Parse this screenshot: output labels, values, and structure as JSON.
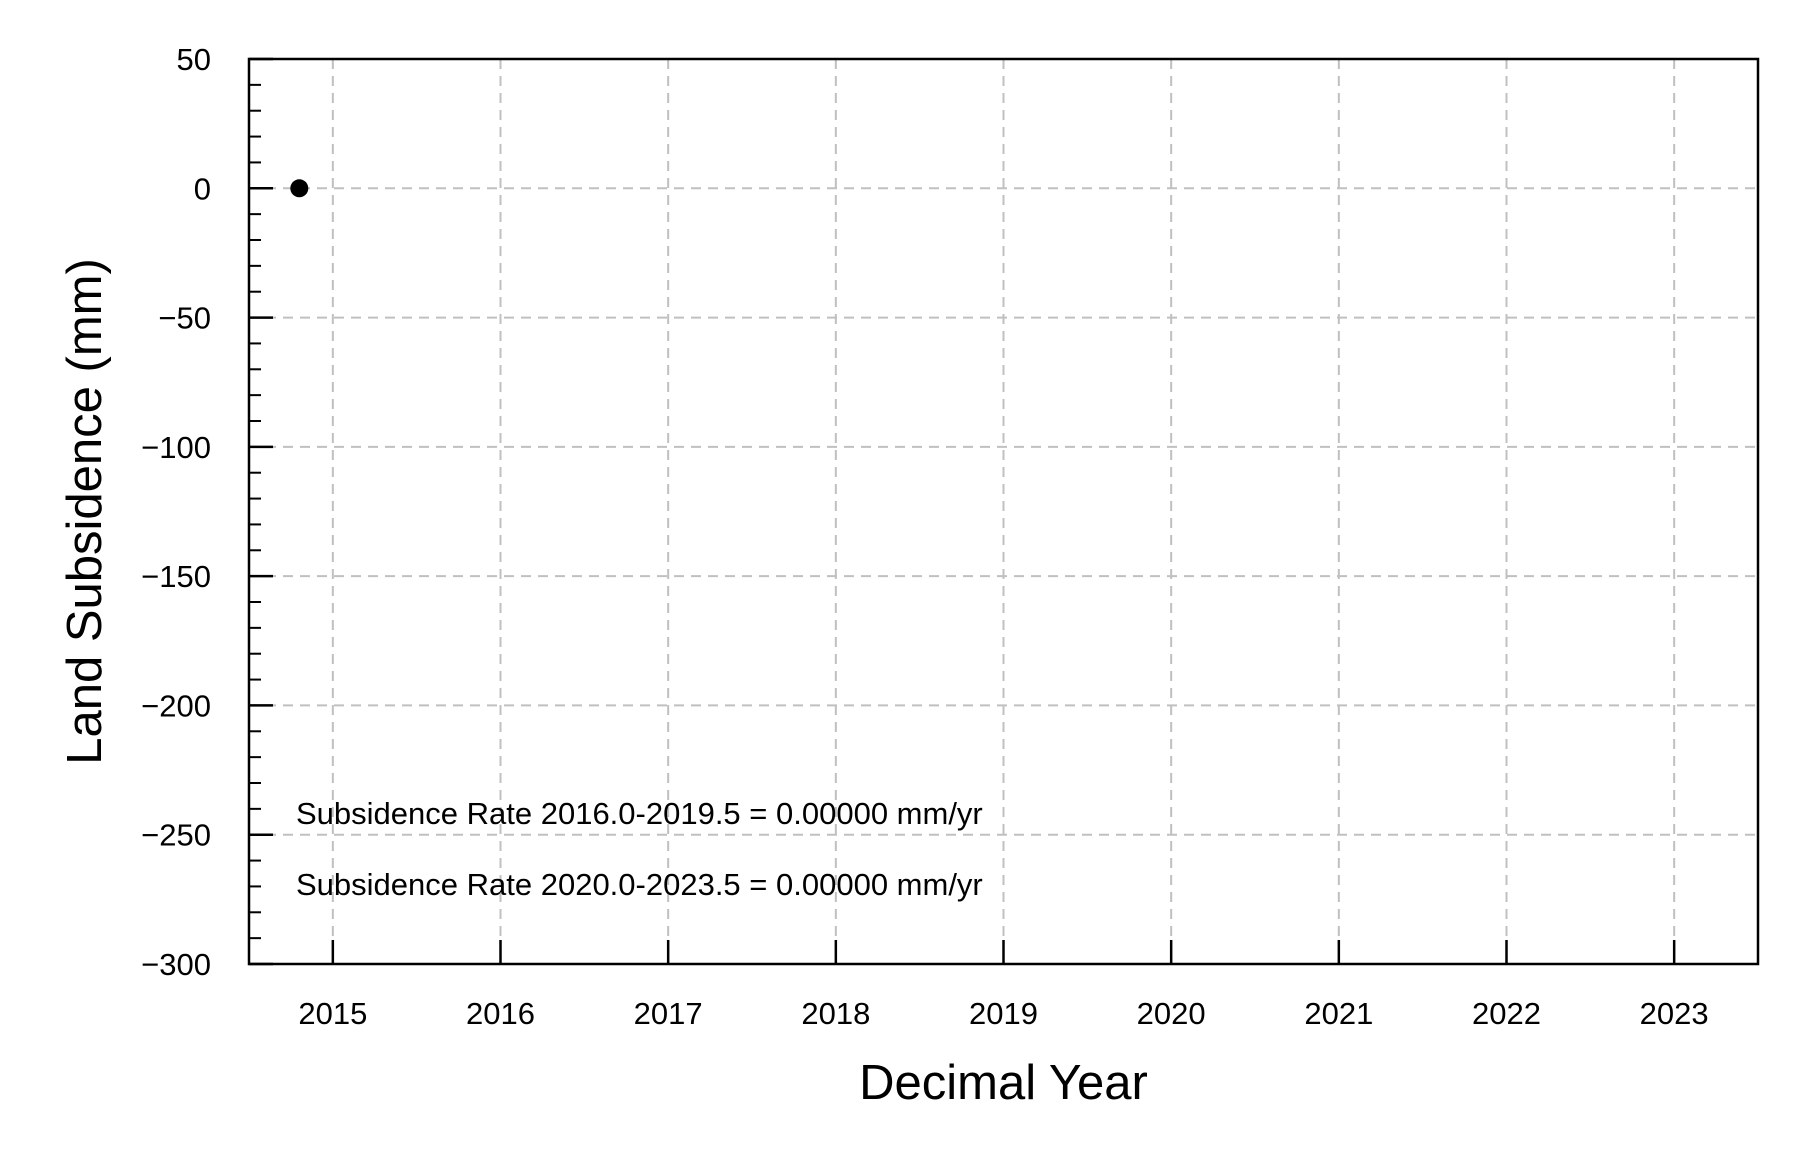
{
  "chart_data": {
    "type": "scatter",
    "title": "",
    "xlabel": "Decimal Year",
    "ylabel": "Land Subsidence (mm)",
    "xlim": [
      2014.5,
      2023.5
    ],
    "ylim": [
      -300,
      50
    ],
    "xticks": [
      2015,
      2016,
      2017,
      2018,
      2019,
      2020,
      2021,
      2022,
      2023
    ],
    "xtick_labels": [
      "2015",
      "2016",
      "2017",
      "2018",
      "2019",
      "2020",
      "2021",
      "2022",
      "2023"
    ],
    "yticks": [
      50,
      0,
      -50,
      -100,
      -150,
      -200,
      -250,
      -300
    ],
    "ytick_labels": [
      "50",
      "0",
      "−50",
      "−100",
      "−150",
      "−200",
      "−250",
      "−300"
    ],
    "y_minor_step": 10,
    "grid": true,
    "legend": "none",
    "series": [
      {
        "x": [
          2014.8
        ],
        "y": [
          0
        ],
        "color": "#000000",
        "marker": "circle"
      }
    ],
    "annotations": [
      "Subsidence Rate 2016.0-2019.5 = 0.00000 mm/yr",
      "Subsidence Rate 2020.0-2023.5 = 0.00000 mm/yr"
    ],
    "colors": {
      "axis": "#000000",
      "grid": "#c0c0c0",
      "marker": "#000000"
    }
  }
}
